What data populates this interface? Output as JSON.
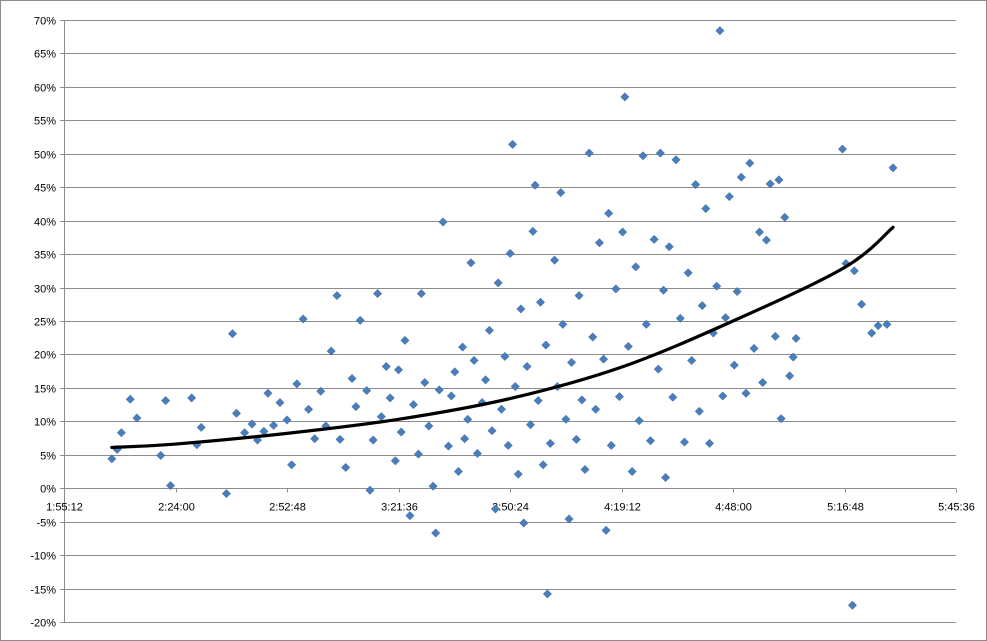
{
  "chart_data": {
    "type": "scatter",
    "title": "",
    "xlabel": "",
    "ylabel": "",
    "x_axis": {
      "kind": "time",
      "min": "1:55:12",
      "max": "5:45:36",
      "tick_labels": [
        "1:55:12",
        "2:24:00",
        "2:52:48",
        "3:21:36",
        "3:50:24",
        "4:19:12",
        "4:48:00",
        "5:16:48",
        "5:45:36"
      ]
    },
    "y_axis": {
      "min": -0.2,
      "max": 0.7,
      "step": 0.05,
      "tick_labels": [
        "-20%",
        "-15%",
        "-10%",
        "-5%",
        "0%",
        "5%",
        "10%",
        "15%",
        "20%",
        "25%",
        "30%",
        "35%",
        "40%",
        "45%",
        "50%",
        "55%",
        "60%",
        "65%",
        "70%"
      ]
    },
    "grid": "horizontal",
    "legend": "none",
    "colors": {
      "points": "#4a7ebb",
      "trendline": "#000000",
      "grid": "#8c8c8c"
    },
    "series": [
      {
        "kind": "points",
        "marker": "diamond",
        "points": [
          [
            "2:07:33",
            0.044
          ],
          [
            "2:08:56",
            0.058
          ],
          [
            "2:10:01",
            0.083
          ],
          [
            "2:12:19",
            0.133
          ],
          [
            "2:14:02",
            0.105
          ],
          [
            "2:20:11",
            0.049
          ],
          [
            "2:21:27",
            0.131
          ],
          [
            "2:22:43",
            0.004
          ],
          [
            "2:28:10",
            0.135
          ],
          [
            "2:29:31",
            0.065
          ],
          [
            "2:30:39",
            0.091
          ],
          [
            "2:37:09",
            -0.008
          ],
          [
            "2:38:43",
            0.231
          ],
          [
            "2:39:45",
            0.112
          ],
          [
            "2:41:51",
            0.083
          ],
          [
            "2:43:46",
            0.096
          ],
          [
            "2:45:11",
            0.072
          ],
          [
            "2:46:50",
            0.085
          ],
          [
            "2:47:52",
            0.142
          ],
          [
            "2:49:20",
            0.094
          ],
          [
            "2:50:59",
            0.128
          ],
          [
            "2:52:48",
            0.102
          ],
          [
            "2:54:00",
            0.035
          ],
          [
            "2:55:21",
            0.156
          ],
          [
            "2:56:58",
            0.253
          ],
          [
            "2:58:22",
            0.118
          ],
          [
            "2:59:57",
            0.074
          ],
          [
            "3:01:31",
            0.145
          ],
          [
            "3:02:50",
            0.093
          ],
          [
            "3:04:13",
            0.205
          ],
          [
            "3:05:43",
            0.288
          ],
          [
            "3:06:30",
            0.073
          ],
          [
            "3:07:57",
            0.031
          ],
          [
            "3:09:36",
            0.164
          ],
          [
            "3:10:36",
            0.122
          ],
          [
            "3:11:43",
            0.251
          ],
          [
            "3:13:23",
            0.146
          ],
          [
            "3:14:15",
            -0.003
          ],
          [
            "3:15:03",
            0.072
          ],
          [
            "3:16:12",
            0.291
          ],
          [
            "3:17:10",
            0.107
          ],
          [
            "3:18:26",
            0.182
          ],
          [
            "3:19:27",
            0.135
          ],
          [
            "3:20:47",
            0.041
          ],
          [
            "3:21:36",
            0.177
          ],
          [
            "3:22:18",
            0.084
          ],
          [
            "3:23:16",
            0.221
          ],
          [
            "3:24:33",
            -0.041
          ],
          [
            "3:25:28",
            0.125
          ],
          [
            "3:26:45",
            0.051
          ],
          [
            "3:27:30",
            0.291
          ],
          [
            "3:28:23",
            0.158
          ],
          [
            "3:29:26",
            0.093
          ],
          [
            "3:30:32",
            0.003
          ],
          [
            "3:31:12",
            -0.067
          ],
          [
            "3:32:08",
            0.147
          ],
          [
            "3:33:06",
            0.398
          ],
          [
            "3:34:30",
            0.063
          ],
          [
            "3:35:15",
            0.138
          ],
          [
            "3:36:09",
            0.174
          ],
          [
            "3:37:05",
            0.025
          ],
          [
            "3:38:09",
            0.211
          ],
          [
            "3:38:41",
            0.074
          ],
          [
            "3:39:29",
            0.103
          ],
          [
            "3:40:18",
            0.337
          ],
          [
            "3:41:07",
            0.191
          ],
          [
            "3:41:59",
            0.052
          ],
          [
            "3:43:13",
            0.128
          ],
          [
            "3:44:05",
            0.162
          ],
          [
            "3:45:05",
            0.236
          ],
          [
            "3:45:46",
            0.086
          ],
          [
            "3:46:38",
            -0.031
          ],
          [
            "3:47:21",
            0.307
          ],
          [
            "3:48:12",
            0.118
          ],
          [
            "3:49:05",
            0.197
          ],
          [
            "3:49:56",
            0.064
          ],
          [
            "3:50:26",
            0.351
          ],
          [
            "3:51:04",
            0.514
          ],
          [
            "3:51:45",
            0.152
          ],
          [
            "3:52:32",
            0.021
          ],
          [
            "3:53:13",
            0.268
          ],
          [
            "3:53:58",
            -0.052
          ],
          [
            "3:54:48",
            0.182
          ],
          [
            "3:55:42",
            0.095
          ],
          [
            "3:56:19",
            0.384
          ],
          [
            "3:56:54",
            0.453
          ],
          [
            "3:57:41",
            0.131
          ],
          [
            "3:58:17",
            0.278
          ],
          [
            "3:58:58",
            0.035
          ],
          [
            "3:59:40",
            0.214
          ],
          [
            "4:00:04",
            -0.158
          ],
          [
            "4:00:49",
            0.067
          ],
          [
            "4:01:55",
            0.341
          ],
          [
            "4:02:38",
            0.152
          ],
          [
            "4:03:31",
            0.442
          ],
          [
            "4:04:02",
            0.245
          ],
          [
            "4:04:50",
            0.103
          ],
          [
            "4:05:39",
            -0.046
          ],
          [
            "4:06:18",
            0.188
          ],
          [
            "4:07:33",
            0.073
          ],
          [
            "4:08:14",
            0.288
          ],
          [
            "4:08:59",
            0.132
          ],
          [
            "4:09:46",
            0.028
          ],
          [
            "4:10:52",
            0.501
          ],
          [
            "4:11:46",
            0.226
          ],
          [
            "4:12:32",
            0.118
          ],
          [
            "4:13:30",
            0.367
          ],
          [
            "4:14:34",
            0.193
          ],
          [
            "4:15:13",
            -0.063
          ],
          [
            "4:15:53",
            0.411
          ],
          [
            "4:16:34",
            0.064
          ],
          [
            "4:17:45",
            0.298
          ],
          [
            "4:18:40",
            0.137
          ],
          [
            "4:19:29",
            0.383
          ],
          [
            "4:20:04",
            0.585
          ],
          [
            "4:20:58",
            0.212
          ],
          [
            "4:21:57",
            0.025
          ],
          [
            "4:22:53",
            0.331
          ],
          [
            "4:23:46",
            0.101
          ],
          [
            "4:24:45",
            0.497
          ],
          [
            "4:25:36",
            0.245
          ],
          [
            "4:26:41",
            0.071
          ],
          [
            "4:27:38",
            0.372
          ],
          [
            "4:28:42",
            0.178
          ],
          [
            "4:29:14",
            0.501
          ],
          [
            "4:30:03",
            0.296
          ],
          [
            "4:30:35",
            0.016
          ],
          [
            "4:31:32",
            0.361
          ],
          [
            "4:32:27",
            0.136
          ],
          [
            "4:33:17",
            0.491
          ],
          [
            "4:34:23",
            0.254
          ],
          [
            "4:35:28",
            0.069
          ],
          [
            "4:36:25",
            0.322
          ],
          [
            "4:37:19",
            0.191
          ],
          [
            "4:38:20",
            0.454
          ],
          [
            "4:39:18",
            0.115
          ],
          [
            "4:40:03",
            0.273
          ],
          [
            "4:40:58",
            0.418
          ],
          [
            "4:41:56",
            0.067
          ],
          [
            "4:42:55",
            0.232
          ],
          [
            "4:43:48",
            0.302
          ],
          [
            "4:44:37",
            0.684
          ],
          [
            "4:45:21",
            0.138
          ],
          [
            "4:46:04",
            0.255
          ],
          [
            "4:47:04",
            0.436
          ],
          [
            "4:48:20",
            0.184
          ],
          [
            "4:49:04",
            0.294
          ],
          [
            "4:50:08",
            0.465
          ],
          [
            "4:51:21",
            0.142
          ],
          [
            "4:52:20",
            0.486
          ],
          [
            "4:53:26",
            0.209
          ],
          [
            "4:54:50",
            0.383
          ],
          [
            "4:55:40",
            0.158
          ],
          [
            "4:56:38",
            0.371
          ],
          [
            "4:57:36",
            0.455
          ],
          [
            "4:58:56",
            0.227
          ],
          [
            "4:59:52",
            0.461
          ],
          [
            "5:00:26",
            0.104
          ],
          [
            "5:01:22",
            0.405
          ],
          [
            "5:02:38",
            0.168
          ],
          [
            "5:03:33",
            0.196
          ],
          [
            "5:04:17",
            0.224
          ],
          [
            "5:16:17",
            0.507
          ],
          [
            "5:17:10",
            0.336
          ],
          [
            "5:18:51",
            -0.175
          ],
          [
            "5:19:20",
            0.325
          ],
          [
            "5:21:13",
            0.275
          ],
          [
            "5:23:49",
            0.232
          ],
          [
            "5:25:29",
            0.243
          ],
          [
            "5:27:45",
            0.245
          ],
          [
            "5:29:20",
            0.479
          ]
        ]
      },
      {
        "kind": "trendline",
        "fit": "polynomial",
        "points": [
          [
            "2:07:33",
            0.061
          ],
          [
            "2:24:00",
            0.066
          ],
          [
            "2:52:48",
            0.082
          ],
          [
            "3:21:36",
            0.103
          ],
          [
            "3:50:24",
            0.134
          ],
          [
            "4:19:12",
            0.181
          ],
          [
            "4:48:00",
            0.25
          ],
          [
            "5:16:48",
            0.33
          ],
          [
            "5:29:20",
            0.39
          ]
        ]
      }
    ]
  }
}
